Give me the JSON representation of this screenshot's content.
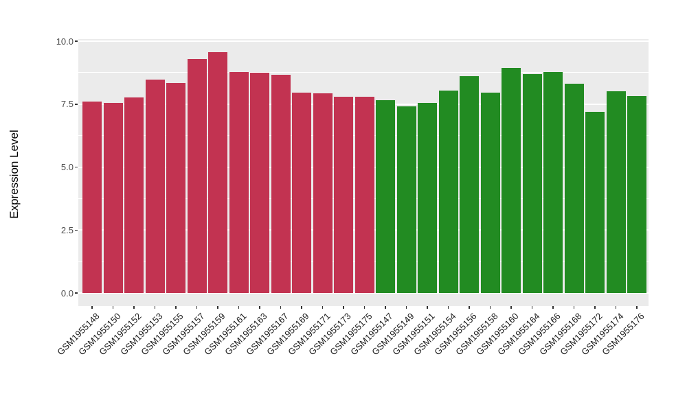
{
  "chart_data": {
    "type": "bar",
    "title": "",
    "xlabel": "",
    "ylabel": "Expression Level",
    "ylim": [
      0,
      10
    ],
    "yticks": [
      0,
      2.5,
      5,
      7.5,
      10
    ],
    "ytick_labels": [
      "0.0",
      "2.5",
      "5.0",
      "7.5",
      "10.0"
    ],
    "minor_gridlines": [
      1.25,
      3.75,
      6.25,
      8.75
    ],
    "grid": "on",
    "legend_position": "none",
    "panel_background": "#EBEBEB",
    "gridline_color": "#FFFFFF",
    "group_colors": {
      "group1": "#C23351",
      "group2": "#228B22"
    },
    "categories": [
      "GSM1955148",
      "GSM1955150",
      "GSM1955152",
      "GSM1955153",
      "GSM1955155",
      "GSM1955157",
      "GSM1955159",
      "GSM1955161",
      "GSM1955163",
      "GSM1955167",
      "GSM1955169",
      "GSM1955171",
      "GSM1955173",
      "GSM1955175",
      "GSM1955147",
      "GSM1955149",
      "GSM1955151",
      "GSM1955154",
      "GSM1955156",
      "GSM1955158",
      "GSM1955160",
      "GSM1955164",
      "GSM1955166",
      "GSM1955168",
      "GSM1955172",
      "GSM1955174",
      "GSM1955176"
    ],
    "values": [
      7.6,
      7.54,
      7.76,
      8.47,
      8.34,
      9.28,
      9.57,
      8.77,
      8.74,
      8.66,
      7.95,
      7.92,
      7.79,
      7.78,
      7.65,
      7.42,
      7.54,
      8.05,
      8.62,
      7.96,
      8.93,
      8.7,
      8.77,
      8.31,
      7.2,
      8.0,
      7.81
    ],
    "bar_groups": [
      "group1",
      "group1",
      "group1",
      "group1",
      "group1",
      "group1",
      "group1",
      "group1",
      "group1",
      "group1",
      "group1",
      "group1",
      "group1",
      "group1",
      "group2",
      "group2",
      "group2",
      "group2",
      "group2",
      "group2",
      "group2",
      "group2",
      "group2",
      "group2",
      "group2",
      "group2",
      "group2"
    ]
  }
}
